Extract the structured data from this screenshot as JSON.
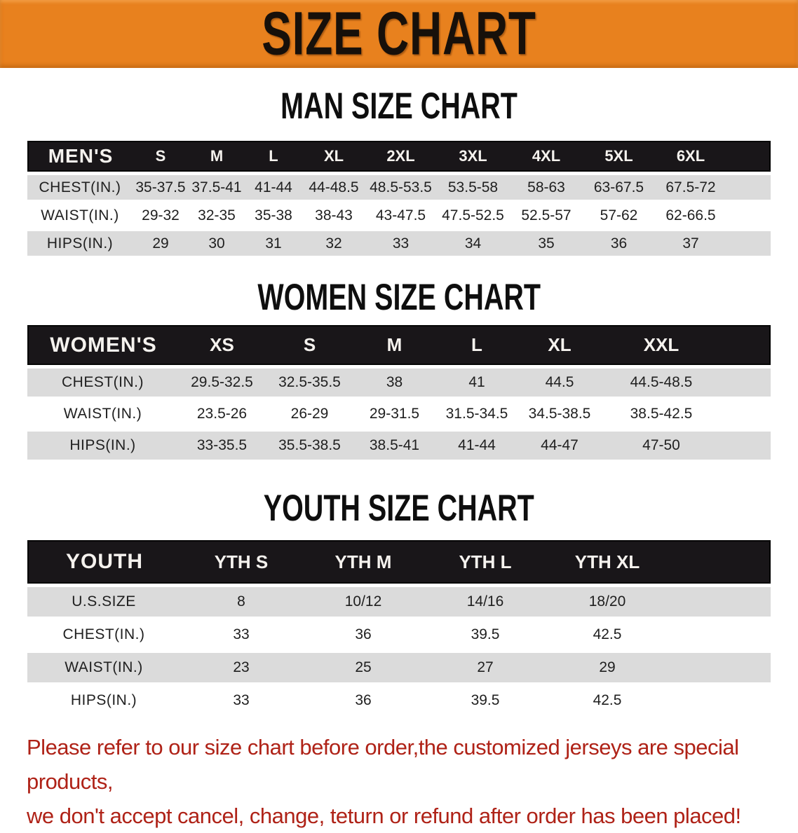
{
  "banner": {
    "title": "SIZE CHART",
    "bg_color": "#E8811E",
    "text_color": "#17100a"
  },
  "colors": {
    "table_header_bg": "#191619",
    "table_header_text": "#f5f2ee",
    "shaded_row_bg": "#dbdbdb",
    "footer_text": "#AF2217"
  },
  "tables": {
    "men": {
      "section_heading": "MAN SIZE CHART",
      "header": [
        "MEN'S",
        "S",
        "M",
        "L",
        "XL",
        "2XL",
        "3XL",
        "4XL",
        "5XL",
        "6XL"
      ],
      "rows": [
        {
          "label": "CHEST(IN.)",
          "values": [
            "35-37.5",
            "37.5-41",
            "41-44",
            "44-48.5",
            "48.5-53.5",
            "53.5-58",
            "58-63",
            "63-67.5",
            "67.5-72"
          ]
        },
        {
          "label": "WAIST(IN.)",
          "values": [
            "29-32",
            "32-35",
            "35-38",
            "38-43",
            "43-47.5",
            "47.5-52.5",
            "52.5-57",
            "57-62",
            "62-66.5"
          ]
        },
        {
          "label": "HIPS(IN.)",
          "values": [
            "29",
            "30",
            "31",
            "32",
            "33",
            "34",
            "35",
            "36",
            "37"
          ]
        }
      ]
    },
    "women": {
      "section_heading": "WOMEN SIZE CHART",
      "header": [
        "WOMEN'S",
        "XS",
        "S",
        "M",
        "L",
        "XL",
        "XXL"
      ],
      "rows": [
        {
          "label": "CHEST(IN.)",
          "values": [
            "29.5-32.5",
            "32.5-35.5",
            "38",
            "41",
            "44.5",
            "44.5-48.5"
          ]
        },
        {
          "label": "WAIST(IN.)",
          "values": [
            "23.5-26",
            "26-29",
            "29-31.5",
            "31.5-34.5",
            "34.5-38.5",
            "38.5-42.5"
          ]
        },
        {
          "label": "HIPS(IN.)",
          "values": [
            "33-35.5",
            "35.5-38.5",
            "38.5-41",
            "41-44",
            "44-47",
            "47-50"
          ]
        }
      ]
    },
    "youth": {
      "section_heading": "YOUTH SIZE CHART",
      "header": [
        "YOUTH",
        "YTH S",
        "YTH M",
        "YTH L",
        "YTH XL"
      ],
      "rows": [
        {
          "label": "U.S.SIZE",
          "values": [
            "8",
            "10/12",
            "14/16",
            "18/20"
          ]
        },
        {
          "label": "CHEST(IN.)",
          "values": [
            "33",
            "36",
            "39.5",
            "42.5"
          ]
        },
        {
          "label": "WAIST(IN.)",
          "values": [
            "23",
            "25",
            "27",
            "29"
          ]
        },
        {
          "label": "HIPS(IN.)",
          "values": [
            "33",
            "36",
            "39.5",
            "42.5"
          ]
        }
      ]
    }
  },
  "footer": {
    "line1": "Please refer to our size chart before order,the customized jerseys are special products,",
    "line2": "we don't accept cancel, change, teturn or refund after order has been placed!"
  }
}
